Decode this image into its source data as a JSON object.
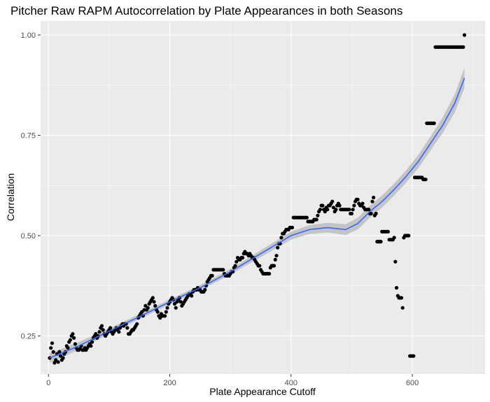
{
  "chart_data": {
    "type": "scatter",
    "title": "Pitcher Raw RAPM Autocorrelation by Plate Appearances in both Seasons",
    "xlabel": "Plate Appearance Cutoff",
    "ylabel": "Correlation",
    "xlim": [
      -13,
      720
    ],
    "ylim": [
      0.155,
      1.035
    ],
    "xticks": [
      0,
      200,
      400,
      600
    ],
    "xtick_labels": [
      "0",
      "200",
      "400",
      "600"
    ],
    "yticks": [
      0.25,
      0.5,
      0.75,
      1.0
    ],
    "ytick_labels": [
      "0.25",
      "0.50",
      "0.75",
      "1.00"
    ],
    "grid": true,
    "point_color": "#000000",
    "smooth_color": "#3366ff",
    "band_color": "#bdbdbd",
    "panel_background": "#ebebeb",
    "grid_color": "#ffffff",
    "points": [
      [
        2,
        0.195
      ],
      [
        4,
        0.22
      ],
      [
        6,
        0.232
      ],
      [
        8,
        0.21
      ],
      [
        10,
        0.183
      ],
      [
        12,
        0.19
      ],
      [
        14,
        0.205
      ],
      [
        16,
        0.185
      ],
      [
        18,
        0.21
      ],
      [
        20,
        0.2
      ],
      [
        22,
        0.19
      ],
      [
        24,
        0.195
      ],
      [
        26,
        0.205
      ],
      [
        28,
        0.21
      ],
      [
        30,
        0.225
      ],
      [
        32,
        0.22
      ],
      [
        34,
        0.235
      ],
      [
        36,
        0.24
      ],
      [
        38,
        0.25
      ],
      [
        40,
        0.255
      ],
      [
        42,
        0.245
      ],
      [
        44,
        0.23
      ],
      [
        46,
        0.22
      ],
      [
        48,
        0.215
      ],
      [
        50,
        0.215
      ],
      [
        52,
        0.218
      ],
      [
        54,
        0.225
      ],
      [
        56,
        0.215
      ],
      [
        58,
        0.215
      ],
      [
        60,
        0.22
      ],
      [
        62,
        0.215
      ],
      [
        64,
        0.22
      ],
      [
        66,
        0.225
      ],
      [
        68,
        0.23
      ],
      [
        70,
        0.225
      ],
      [
        72,
        0.235
      ],
      [
        74,
        0.245
      ],
      [
        76,
        0.25
      ],
      [
        78,
        0.255
      ],
      [
        80,
        0.245
      ],
      [
        82,
        0.25
      ],
      [
        84,
        0.26
      ],
      [
        86,
        0.27
      ],
      [
        88,
        0.275
      ],
      [
        90,
        0.265
      ],
      [
        92,
        0.255
      ],
      [
        94,
        0.25
      ],
      [
        96,
        0.255
      ],
      [
        98,
        0.26
      ],
      [
        100,
        0.265
      ],
      [
        102,
        0.27
      ],
      [
        104,
        0.26
      ],
      [
        106,
        0.255
      ],
      [
        108,
        0.26
      ],
      [
        110,
        0.265
      ],
      [
        112,
        0.27
      ],
      [
        114,
        0.265
      ],
      [
        116,
        0.26
      ],
      [
        118,
        0.27
      ],
      [
        120,
        0.275
      ],
      [
        122,
        0.28
      ],
      [
        124,
        0.275
      ],
      [
        126,
        0.28
      ],
      [
        128,
        0.28
      ],
      [
        130,
        0.27
      ],
      [
        132,
        0.255
      ],
      [
        134,
        0.255
      ],
      [
        136,
        0.26
      ],
      [
        138,
        0.265
      ],
      [
        140,
        0.265
      ],
      [
        142,
        0.27
      ],
      [
        144,
        0.275
      ],
      [
        146,
        0.28
      ],
      [
        148,
        0.295
      ],
      [
        150,
        0.3
      ],
      [
        152,
        0.305
      ],
      [
        154,
        0.31
      ],
      [
        156,
        0.3
      ],
      [
        158,
        0.315
      ],
      [
        160,
        0.325
      ],
      [
        162,
        0.315
      ],
      [
        164,
        0.32
      ],
      [
        166,
        0.33
      ],
      [
        168,
        0.335
      ],
      [
        170,
        0.34
      ],
      [
        172,
        0.345
      ],
      [
        174,
        0.335
      ],
      [
        176,
        0.325
      ],
      [
        178,
        0.315
      ],
      [
        180,
        0.31
      ],
      [
        182,
        0.3
      ],
      [
        184,
        0.295
      ],
      [
        186,
        0.305
      ],
      [
        188,
        0.3
      ],
      [
        190,
        0.3
      ],
      [
        192,
        0.3
      ],
      [
        194,
        0.31
      ],
      [
        196,
        0.32
      ],
      [
        198,
        0.33
      ],
      [
        200,
        0.335
      ],
      [
        202,
        0.34
      ],
      [
        204,
        0.345
      ],
      [
        206,
        0.34
      ],
      [
        208,
        0.33
      ],
      [
        210,
        0.32
      ],
      [
        212,
        0.335
      ],
      [
        214,
        0.34
      ],
      [
        216,
        0.345
      ],
      [
        218,
        0.335
      ],
      [
        220,
        0.325
      ],
      [
        222,
        0.33
      ],
      [
        224,
        0.335
      ],
      [
        226,
        0.34
      ],
      [
        228,
        0.345
      ],
      [
        230,
        0.35
      ],
      [
        232,
        0.355
      ],
      [
        234,
        0.355
      ],
      [
        236,
        0.35
      ],
      [
        238,
        0.36
      ],
      [
        240,
        0.365
      ],
      [
        242,
        0.365
      ],
      [
        244,
        0.365
      ],
      [
        246,
        0.37
      ],
      [
        248,
        0.365
      ],
      [
        250,
        0.365
      ],
      [
        252,
        0.36
      ],
      [
        254,
        0.36
      ],
      [
        256,
        0.36
      ],
      [
        258,
        0.365
      ],
      [
        260,
        0.375
      ],
      [
        262,
        0.385
      ],
      [
        264,
        0.39
      ],
      [
        266,
        0.395
      ],
      [
        268,
        0.4
      ],
      [
        270,
        0.4
      ],
      [
        272,
        0.415
      ],
      [
        274,
        0.415
      ],
      [
        276,
        0.415
      ],
      [
        278,
        0.415
      ],
      [
        280,
        0.415
      ],
      [
        282,
        0.415
      ],
      [
        284,
        0.415
      ],
      [
        286,
        0.415
      ],
      [
        288,
        0.415
      ],
      [
        290,
        0.405
      ],
      [
        292,
        0.4
      ],
      [
        294,
        0.4
      ],
      [
        296,
        0.4
      ],
      [
        298,
        0.4
      ],
      [
        300,
        0.405
      ],
      [
        302,
        0.41
      ],
      [
        304,
        0.41
      ],
      [
        306,
        0.42
      ],
      [
        308,
        0.425
      ],
      [
        310,
        0.435
      ],
      [
        312,
        0.445
      ],
      [
        314,
        0.44
      ],
      [
        316,
        0.44
      ],
      [
        318,
        0.445
      ],
      [
        320,
        0.445
      ],
      [
        322,
        0.455
      ],
      [
        324,
        0.46
      ],
      [
        326,
        0.455
      ],
      [
        328,
        0.455
      ],
      [
        330,
        0.45
      ],
      [
        332,
        0.455
      ],
      [
        334,
        0.45
      ],
      [
        336,
        0.445
      ],
      [
        338,
        0.445
      ],
      [
        340,
        0.44
      ],
      [
        342,
        0.435
      ],
      [
        344,
        0.43
      ],
      [
        346,
        0.425
      ],
      [
        348,
        0.425
      ],
      [
        350,
        0.415
      ],
      [
        352,
        0.41
      ],
      [
        354,
        0.405
      ],
      [
        356,
        0.405
      ],
      [
        358,
        0.405
      ],
      [
        360,
        0.405
      ],
      [
        362,
        0.405
      ],
      [
        364,
        0.405
      ],
      [
        366,
        0.42
      ],
      [
        368,
        0.425
      ],
      [
        370,
        0.425
      ],
      [
        372,
        0.425
      ],
      [
        374,
        0.44
      ],
      [
        376,
        0.45
      ],
      [
        378,
        0.47
      ],
      [
        380,
        0.48
      ],
      [
        382,
        0.48
      ],
      [
        384,
        0.495
      ],
      [
        386,
        0.505
      ],
      [
        388,
        0.505
      ],
      [
        390,
        0.51
      ],
      [
        392,
        0.515
      ],
      [
        394,
        0.515
      ],
      [
        396,
        0.515
      ],
      [
        398,
        0.52
      ],
      [
        400,
        0.52
      ],
      [
        402,
        0.52
      ],
      [
        404,
        0.545
      ],
      [
        406,
        0.545
      ],
      [
        408,
        0.545
      ],
      [
        410,
        0.545
      ],
      [
        412,
        0.545
      ],
      [
        414,
        0.545
      ],
      [
        416,
        0.545
      ],
      [
        418,
        0.545
      ],
      [
        420,
        0.545
      ],
      [
        422,
        0.545
      ],
      [
        424,
        0.545
      ],
      [
        426,
        0.545
      ],
      [
        428,
        0.535
      ],
      [
        430,
        0.535
      ],
      [
        432,
        0.535
      ],
      [
        434,
        0.535
      ],
      [
        436,
        0.535
      ],
      [
        438,
        0.54
      ],
      [
        440,
        0.54
      ],
      [
        442,
        0.54
      ],
      [
        444,
        0.55
      ],
      [
        446,
        0.56
      ],
      [
        448,
        0.565
      ],
      [
        450,
        0.575
      ],
      [
        452,
        0.575
      ],
      [
        454,
        0.565
      ],
      [
        456,
        0.56
      ],
      [
        458,
        0.57
      ],
      [
        460,
        0.565
      ],
      [
        462,
        0.575
      ],
      [
        464,
        0.575
      ],
      [
        466,
        0.58
      ],
      [
        468,
        0.585
      ],
      [
        470,
        0.57
      ],
      [
        472,
        0.56
      ],
      [
        474,
        0.565
      ],
      [
        476,
        0.575
      ],
      [
        478,
        0.58
      ],
      [
        480,
        0.575
      ],
      [
        482,
        0.565
      ],
      [
        484,
        0.565
      ],
      [
        486,
        0.565
      ],
      [
        488,
        0.565
      ],
      [
        490,
        0.565
      ],
      [
        492,
        0.565
      ],
      [
        494,
        0.565
      ],
      [
        496,
        0.565
      ],
      [
        498,
        0.555
      ],
      [
        500,
        0.555
      ],
      [
        502,
        0.565
      ],
      [
        504,
        0.575
      ],
      [
        506,
        0.585
      ],
      [
        508,
        0.59
      ],
      [
        510,
        0.59
      ],
      [
        512,
        0.58
      ],
      [
        514,
        0.575
      ],
      [
        516,
        0.575
      ],
      [
        518,
        0.58
      ],
      [
        520,
        0.57
      ],
      [
        522,
        0.565
      ],
      [
        524,
        0.565
      ],
      [
        526,
        0.565
      ],
      [
        528,
        0.565
      ],
      [
        530,
        0.555
      ],
      [
        532,
        0.555
      ],
      [
        534,
        0.585
      ],
      [
        536,
        0.595
      ],
      [
        538,
        0.55
      ],
      [
        540,
        0.555
      ],
      [
        542,
        0.485
      ],
      [
        544,
        0.485
      ],
      [
        546,
        0.485
      ],
      [
        548,
        0.485
      ],
      [
        550,
        0.51
      ],
      [
        552,
        0.51
      ],
      [
        554,
        0.51
      ],
      [
        556,
        0.51
      ],
      [
        558,
        0.51
      ],
      [
        560,
        0.51
      ],
      [
        562,
        0.49
      ],
      [
        564,
        0.49
      ],
      [
        566,
        0.49
      ],
      [
        568,
        0.49
      ],
      [
        570,
        0.495
      ],
      [
        572,
        0.435
      ],
      [
        574,
        0.37
      ],
      [
        576,
        0.35
      ],
      [
        578,
        0.345
      ],
      [
        580,
        0.345
      ],
      [
        582,
        0.345
      ],
      [
        584,
        0.32
      ],
      [
        586,
        0.495
      ],
      [
        588,
        0.5
      ],
      [
        590,
        0.5
      ],
      [
        592,
        0.5
      ],
      [
        594,
        0.5
      ],
      [
        596,
        0.2
      ],
      [
        598,
        0.2
      ],
      [
        600,
        0.2
      ],
      [
        602,
        0.2
      ],
      [
        604,
        0.645
      ],
      [
        606,
        0.645
      ],
      [
        608,
        0.645
      ],
      [
        610,
        0.645
      ],
      [
        612,
        0.645
      ],
      [
        614,
        0.645
      ],
      [
        616,
        0.645
      ],
      [
        618,
        0.64
      ],
      [
        620,
        0.64
      ],
      [
        622,
        0.64
      ],
      [
        624,
        0.78
      ],
      [
        626,
        0.78
      ],
      [
        628,
        0.78
      ],
      [
        630,
        0.78
      ],
      [
        632,
        0.78
      ],
      [
        634,
        0.78
      ],
      [
        636,
        0.78
      ],
      [
        638,
        0.97
      ],
      [
        640,
        0.97
      ],
      [
        642,
        0.97
      ],
      [
        644,
        0.97
      ],
      [
        646,
        0.97
      ],
      [
        648,
        0.97
      ],
      [
        650,
        0.97
      ],
      [
        652,
        0.97
      ],
      [
        654,
        0.97
      ],
      [
        656,
        0.97
      ],
      [
        658,
        0.97
      ],
      [
        660,
        0.97
      ],
      [
        662,
        0.97
      ],
      [
        664,
        0.97
      ],
      [
        666,
        0.97
      ],
      [
        668,
        0.97
      ],
      [
        670,
        0.97
      ],
      [
        672,
        0.97
      ],
      [
        674,
        0.97
      ],
      [
        676,
        0.97
      ],
      [
        678,
        0.97
      ],
      [
        680,
        0.97
      ],
      [
        682,
        0.97
      ],
      [
        684,
        0.97
      ],
      [
        686,
        1.0
      ]
    ],
    "smooth_line": [
      [
        2,
        0.195
      ],
      [
        50,
        0.225
      ],
      [
        100,
        0.262
      ],
      [
        150,
        0.298
      ],
      [
        200,
        0.335
      ],
      [
        250,
        0.37
      ],
      [
        300,
        0.41
      ],
      [
        350,
        0.455
      ],
      [
        400,
        0.5
      ],
      [
        430,
        0.515
      ],
      [
        460,
        0.52
      ],
      [
        490,
        0.515
      ],
      [
        510,
        0.53
      ],
      [
        530,
        0.56
      ],
      [
        550,
        0.585
      ],
      [
        570,
        0.615
      ],
      [
        590,
        0.648
      ],
      [
        610,
        0.685
      ],
      [
        630,
        0.73
      ],
      [
        650,
        0.775
      ],
      [
        670,
        0.83
      ],
      [
        686,
        0.893
      ]
    ],
    "smooth_band_halfwidth": [
      [
        2,
        0.012
      ],
      [
        100,
        0.007
      ],
      [
        200,
        0.006
      ],
      [
        300,
        0.007
      ],
      [
        400,
        0.01
      ],
      [
        460,
        0.012
      ],
      [
        520,
        0.015
      ],
      [
        580,
        0.015
      ],
      [
        640,
        0.018
      ],
      [
        686,
        0.025
      ]
    ]
  }
}
